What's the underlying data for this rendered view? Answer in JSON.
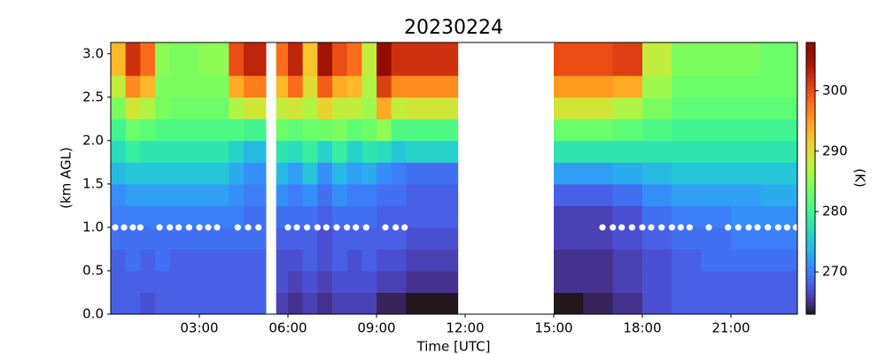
{
  "chart_data": {
    "type": "heatmap",
    "title": "20230224",
    "x_label": "Time [UTC]",
    "y_label": "(km AGL)",
    "colorbar_label": "(K)",
    "colormap": "turbo",
    "x_bins": [
      0,
      0.5,
      1,
      1.5,
      2,
      3,
      4,
      4.5,
      5.25,
      5.6,
      6,
      6.5,
      7,
      7.5,
      8,
      8.5,
      9,
      9.5,
      10,
      11.75,
      15,
      16,
      17,
      18,
      19,
      20,
      21,
      22,
      23.25
    ],
    "y_bins": [
      0,
      0.25,
      0.5,
      0.75,
      1.0,
      1.25,
      1.5,
      1.75,
      2.0,
      2.25,
      2.5,
      2.75,
      3.13
    ],
    "values": [
      [
        268,
        268,
        268,
        269,
        270,
        271,
        274,
        277,
        280,
        284,
        288,
        293
      ],
      [
        268,
        268,
        269,
        269,
        270,
        272,
        275,
        279,
        283,
        289,
        296,
        302
      ],
      [
        267,
        268,
        268,
        269,
        270,
        272,
        275,
        278,
        282,
        287,
        293,
        298
      ],
      [
        268,
        268,
        269,
        269,
        270,
        272,
        275,
        278,
        281,
        284,
        284,
        285
      ],
      [
        268,
        268,
        268,
        269,
        270,
        272,
        275,
        278,
        281,
        283,
        284,
        284
      ],
      [
        268,
        268,
        268,
        269,
        270,
        272,
        275,
        278,
        281,
        283,
        284,
        285
      ],
      [
        268,
        268,
        268,
        269,
        270,
        271,
        273,
        276,
        281,
        287,
        294,
        300
      ],
      [
        268,
        268,
        268,
        269,
        269,
        270,
        271,
        274,
        280,
        289,
        297,
        303
      ],
      null,
      [
        266,
        267,
        267,
        268,
        269,
        271,
        274,
        278,
        283,
        288,
        293,
        298
      ],
      [
        265,
        266,
        267,
        268,
        269,
        270,
        272,
        277,
        282,
        289,
        298,
        303
      ],
      [
        266,
        267,
        268,
        268,
        269,
        271,
        275,
        279,
        283,
        287,
        290,
        292
      ],
      [
        265,
        266,
        267,
        267,
        268,
        269,
        271,
        276,
        283,
        291,
        299,
        305
      ],
      [
        266,
        267,
        268,
        268,
        269,
        271,
        274,
        279,
        284,
        288,
        294,
        300
      ],
      [
        266,
        267,
        267,
        268,
        269,
        270,
        272,
        276,
        282,
        288,
        293,
        298
      ],
      [
        266,
        267,
        268,
        268,
        269,
        270,
        273,
        278,
        283,
        286,
        287,
        288
      ],
      [
        264,
        266,
        267,
        268,
        268,
        269,
        271,
        277,
        285,
        294,
        301,
        307
      ],
      [
        264,
        266,
        267,
        268,
        268,
        269,
        270,
        275,
        281,
        288,
        296,
        302
      ],
      [
        263,
        265,
        266,
        267,
        268,
        268,
        269,
        276,
        281,
        289,
        296,
        302
      ],
      null,
      [
        263,
        265,
        265,
        266,
        266,
        268,
        272,
        278,
        283,
        289,
        295,
        300
      ],
      [
        264,
        265,
        265,
        266,
        266,
        268,
        272,
        278,
        283,
        289,
        295,
        300
      ],
      [
        265,
        266,
        266,
        267,
        267,
        269,
        273,
        278,
        282,
        287,
        294,
        301
      ],
      [
        267,
        267,
        267,
        268,
        269,
        271,
        274,
        278,
        281,
        284,
        286,
        288
      ],
      [
        268,
        268,
        268,
        269,
        270,
        272,
        275,
        278,
        280,
        282,
        283,
        284
      ],
      [
        268,
        268,
        269,
        269,
        270,
        272,
        275,
        278,
        280,
        282,
        283,
        284
      ],
      [
        268,
        268,
        269,
        270,
        271,
        272,
        275,
        278,
        280,
        282,
        283,
        284
      ],
      [
        268,
        268,
        269,
        270,
        271,
        273,
        275,
        278,
        280,
        282,
        283,
        283
      ]
    ],
    "markers": {
      "color": "#ffffff",
      "x": [
        0.15,
        0.45,
        0.75,
        1.0,
        1.65,
        2.0,
        2.3,
        2.65,
        3.0,
        3.3,
        3.6,
        4.3,
        4.65,
        5.0,
        6.0,
        6.3,
        6.65,
        7.0,
        7.3,
        7.65,
        8.0,
        8.3,
        8.65,
        9.3,
        9.65,
        9.95,
        16.65,
        17.0,
        17.3,
        17.65,
        18.0,
        18.3,
        18.65,
        19.0,
        19.3,
        19.6,
        20.25,
        20.9,
        21.25,
        21.6,
        21.9,
        22.25,
        22.6,
        22.9,
        23.2
      ],
      "y": [
        1,
        1,
        1,
        1,
        1,
        1,
        1,
        1,
        1,
        1,
        1,
        1,
        1,
        1,
        1,
        1,
        1,
        1,
        1,
        1,
        1,
        1,
        1,
        1,
        1,
        1,
        1,
        1,
        1,
        1,
        1,
        1,
        1,
        1,
        1,
        1,
        1,
        1,
        1,
        1,
        1,
        1,
        1,
        1,
        1
      ]
    },
    "xlim": [
      0,
      23.25
    ],
    "xticks": [
      {
        "value": 3,
        "label": "03:00"
      },
      {
        "value": 6,
        "label": "06:00"
      },
      {
        "value": 9,
        "label": "09:00"
      },
      {
        "value": 12,
        "label": "12:00"
      },
      {
        "value": 15,
        "label": "15:00"
      },
      {
        "value": 18,
        "label": "18:00"
      },
      {
        "value": 21,
        "label": "21:00"
      }
    ],
    "ylim": [
      0,
      3.13
    ],
    "yticks": [
      {
        "value": 0,
        "label": "0.0"
      },
      {
        "value": 0.5,
        "label": "0.5"
      },
      {
        "value": 1,
        "label": "1.0"
      },
      {
        "value": 1.5,
        "label": "1.5"
      },
      {
        "value": 2,
        "label": "2.0"
      },
      {
        "value": 2.5,
        "label": "2.5"
      },
      {
        "value": 3,
        "label": "3.0"
      }
    ],
    "clim": [
      263,
      308
    ],
    "cticks": [
      270,
      280,
      290,
      300
    ]
  }
}
